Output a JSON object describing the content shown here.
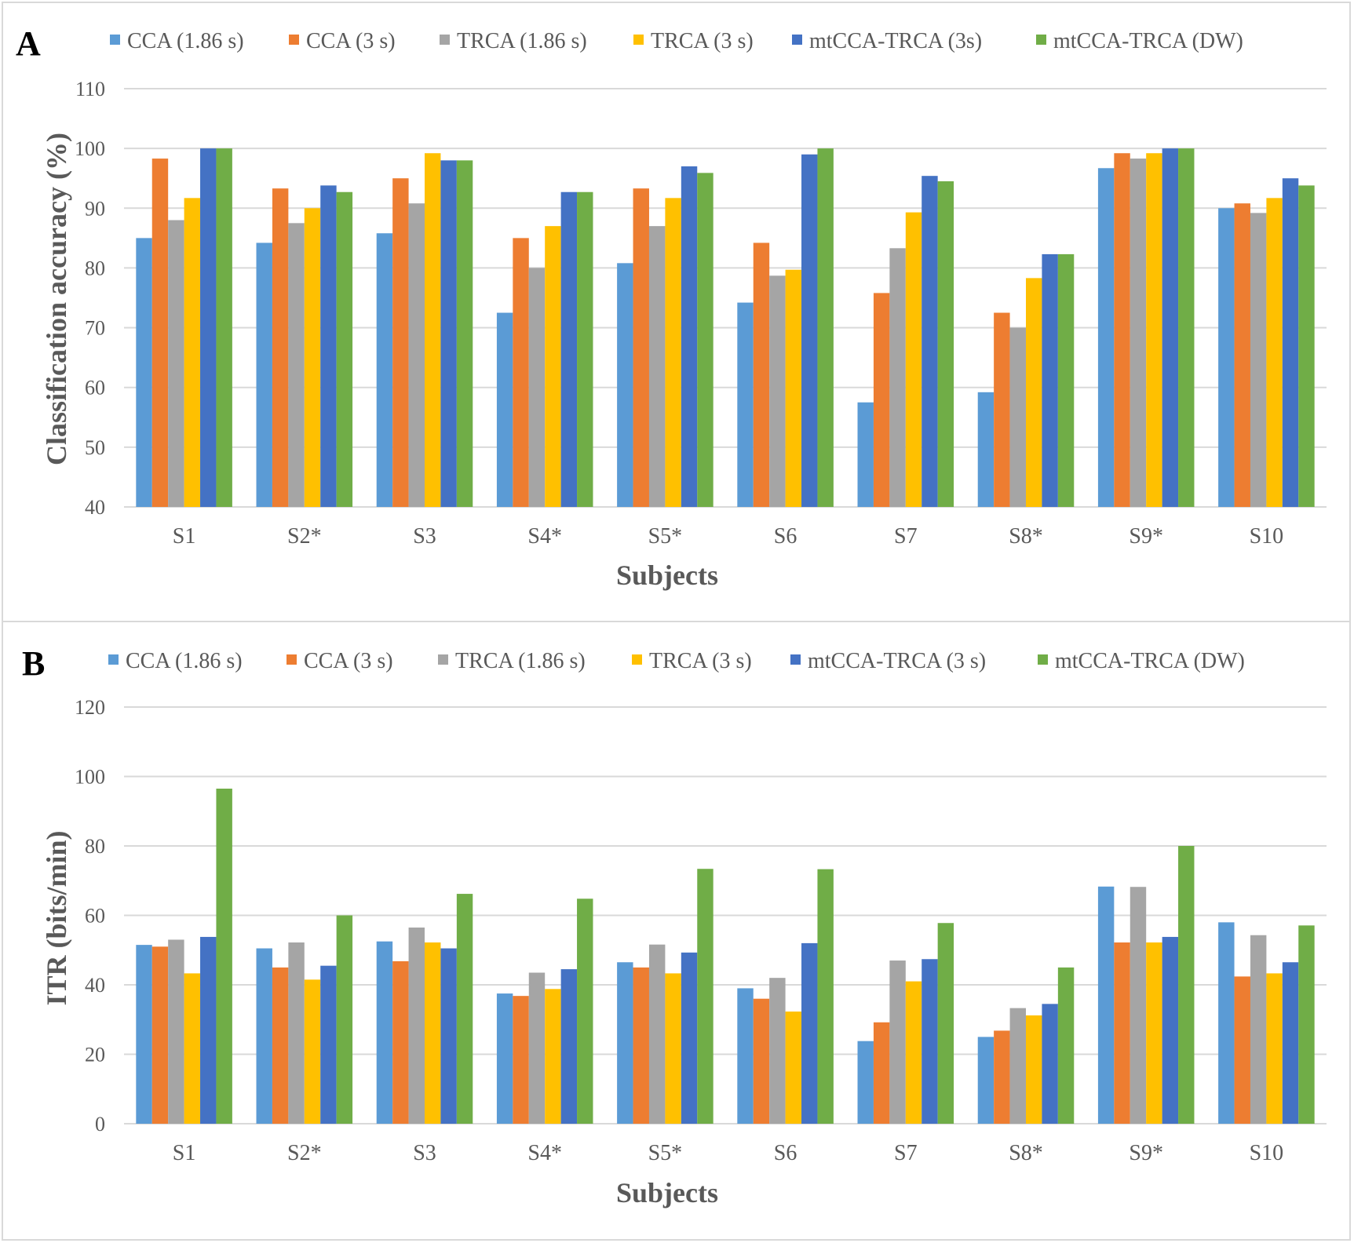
{
  "colors": {
    "series": [
      "#5b9bd5",
      "#ed7d31",
      "#a5a5a5",
      "#ffc000",
      "#4472c4",
      "#70ad47"
    ],
    "grid": "#d9d9d9",
    "text": "#595959"
  },
  "chart_data": [
    {
      "type": "bar",
      "panel_label": "A",
      "title": "",
      "xlabel": "Subjects",
      "ylabel": "Classification accuracy (%)",
      "ylim": [
        40,
        110
      ],
      "yticks": [
        40,
        50,
        60,
        70,
        80,
        90,
        100,
        110
      ],
      "grid": true,
      "legend_position": "top",
      "categories": [
        "S1",
        "S2*",
        "S3",
        "S4*",
        "S5*",
        "S6",
        "S7",
        "S8*",
        "S9*",
        "S10"
      ],
      "series": [
        {
          "name": "CCA (1.86 s)",
          "values": [
            85,
            84.2,
            85.8,
            72.5,
            80.8,
            74.2,
            57.5,
            59.2,
            96.7,
            90
          ]
        },
        {
          "name": "CCA (3 s)",
          "values": [
            98.3,
            93.3,
            95,
            85,
            93.3,
            84.2,
            75.8,
            72.5,
            99.2,
            90.8
          ]
        },
        {
          "name": "TRCA (1.86 s)",
          "values": [
            88,
            87.5,
            90.8,
            80,
            87,
            78.7,
            83.3,
            70,
            98.3,
            89.2
          ]
        },
        {
          "name": "TRCA (3 s)",
          "values": [
            91.7,
            90,
            99.2,
            87,
            91.7,
            79.7,
            89.3,
            78.3,
            99.2,
            91.7
          ]
        },
        {
          "name": "mtCCA-TRCA (3s)",
          "values": [
            100,
            93.8,
            98,
            92.7,
            97,
            99,
            95.4,
            82.3,
            100,
            95
          ]
        },
        {
          "name": "mtCCA-TRCA (DW)",
          "values": [
            100,
            92.7,
            98,
            92.7,
            95.9,
            100,
            94.5,
            82.3,
            100,
            93.8
          ]
        }
      ]
    },
    {
      "type": "bar",
      "panel_label": "B",
      "title": "",
      "xlabel": "Subjects",
      "ylabel": "ITR (bits/min)",
      "ylim": [
        0,
        120
      ],
      "yticks": [
        0,
        20,
        40,
        60,
        80,
        100,
        120
      ],
      "grid": true,
      "legend_position": "top",
      "categories": [
        "S1",
        "S2*",
        "S3",
        "S4*",
        "S5*",
        "S6",
        "S7",
        "S8*",
        "S9*",
        "S10"
      ],
      "series": [
        {
          "name": "CCA (1.86 s)",
          "values": [
            51.5,
            50.5,
            52.5,
            37.5,
            46.5,
            39,
            23.8,
            25,
            68.3,
            58
          ]
        },
        {
          "name": "CCA (3 s)",
          "values": [
            51,
            45,
            46.8,
            36.8,
            45,
            36,
            29.2,
            26.8,
            52.2,
            42.4
          ]
        },
        {
          "name": "TRCA (1.86 s)",
          "values": [
            53,
            52.2,
            56.5,
            43.5,
            51.6,
            42,
            47,
            33.3,
            68.2,
            54.3
          ]
        },
        {
          "name": "TRCA (3 s)",
          "values": [
            43.3,
            41.5,
            52.2,
            38.8,
            43.3,
            32.3,
            41,
            31.2,
            52.2,
            43.3
          ]
        },
        {
          "name": "mtCCA-TRCA (3 s)",
          "values": [
            53.8,
            45.5,
            50.5,
            44.5,
            49.3,
            52,
            47.4,
            34.5,
            53.8,
            46.5
          ]
        },
        {
          "name": "mtCCA-TRCA (DW)",
          "values": [
            96.5,
            60,
            66.2,
            64.8,
            73.4,
            73.3,
            57.8,
            45,
            80,
            57.1
          ]
        }
      ]
    }
  ]
}
